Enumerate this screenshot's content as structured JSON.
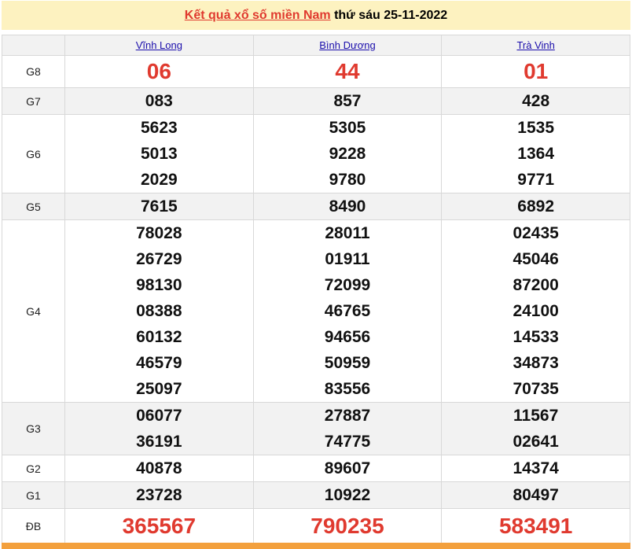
{
  "title": {
    "link": "Kết quả xổ số miền Nam",
    "rest": " thứ sáu 25-11-2022"
  },
  "provinces": [
    "Vĩnh Long",
    "Bình Dương",
    "Trà Vinh"
  ],
  "prizes": [
    {
      "label": "G8",
      "big": true,
      "values": [
        [
          "06"
        ],
        [
          "44"
        ],
        [
          "01"
        ]
      ]
    },
    {
      "label": "G7",
      "values": [
        [
          "083"
        ],
        [
          "857"
        ],
        [
          "428"
        ]
      ]
    },
    {
      "label": "G6",
      "values": [
        [
          "5623",
          "5013",
          "2029"
        ],
        [
          "5305",
          "9228",
          "9780"
        ],
        [
          "1535",
          "1364",
          "9771"
        ]
      ]
    },
    {
      "label": "G5",
      "values": [
        [
          "7615"
        ],
        [
          "8490"
        ],
        [
          "6892"
        ]
      ]
    },
    {
      "label": "G4",
      "values": [
        [
          "78028",
          "26729",
          "98130",
          "08388",
          "60132",
          "46579",
          "25097"
        ],
        [
          "28011",
          "01911",
          "72099",
          "46765",
          "94656",
          "50959",
          "83556"
        ],
        [
          "02435",
          "45046",
          "87200",
          "24100",
          "14533",
          "34873",
          "70735"
        ]
      ]
    },
    {
      "label": "G3",
      "values": [
        [
          "06077",
          "36191"
        ],
        [
          "27887",
          "74775"
        ],
        [
          "11567",
          "02641"
        ]
      ]
    },
    {
      "label": "G2",
      "values": [
        [
          "40878"
        ],
        [
          "89607"
        ],
        [
          "14374"
        ]
      ]
    },
    {
      "label": "G1",
      "values": [
        [
          "23728"
        ],
        [
          "10922"
        ],
        [
          "80497"
        ]
      ]
    },
    {
      "label": "ĐB",
      "big": true,
      "values": [
        [
          "365567"
        ],
        [
          "790235"
        ],
        [
          "583491"
        ]
      ]
    }
  ],
  "colors": {
    "accent": "#e03a2f",
    "title_bg": "#fdf2c0",
    "bottom_bar": "#f3a03d",
    "link": "#1a0dab"
  }
}
